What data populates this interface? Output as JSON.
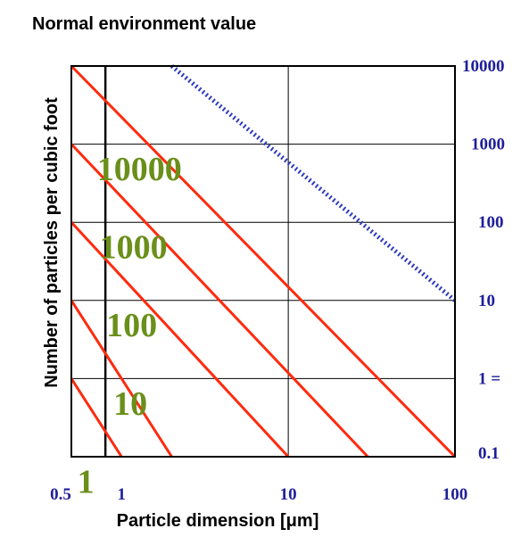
{
  "chart_data": {
    "type": "line",
    "title": "Normal environment value",
    "xlabel": "Particle dimension [μm]",
    "ylabel": "Number of particles per cubic foot",
    "x_scale": "log",
    "y_scale": "log",
    "xlim": [
      0.5,
      100
    ],
    "ylim": [
      0.1,
      10000
    ],
    "x_ticks": [
      "0.5",
      "1",
      "10",
      "100"
    ],
    "y_ticks": [
      "10000",
      "1000",
      "100",
      "10",
      "1 =",
      "0.1"
    ],
    "grid": true,
    "class_labels": [
      "10000",
      "1000",
      "100",
      "10",
      "1"
    ],
    "series": [
      {
        "color": "#ff2a0d",
        "style": "solid",
        "label_index": 4,
        "points": [
          [
            0.5,
            1
          ],
          [
            1.0,
            0.1
          ]
        ]
      },
      {
        "color": "#ff2a0d",
        "style": "solid",
        "label_index": 3,
        "points": [
          [
            0.5,
            10
          ],
          [
            2.0,
            0.1
          ]
        ]
      },
      {
        "color": "#ff2a0d",
        "style": "solid",
        "label_index": 2,
        "points": [
          [
            0.5,
            100
          ],
          [
            10,
            0.1
          ]
        ]
      },
      {
        "color": "#ff2a0d",
        "style": "solid",
        "label_index": 1,
        "points": [
          [
            0.5,
            1000
          ],
          [
            30,
            0.1
          ]
        ]
      },
      {
        "color": "#ff2a0d",
        "style": "solid",
        "label_index": 0,
        "points": [
          [
            0.5,
            10000
          ],
          [
            100,
            0.1
          ]
        ]
      },
      {
        "color": "#2f3dbb",
        "style": "dotted",
        "points": [
          [
            2.0,
            10000
          ],
          [
            100,
            10
          ]
        ]
      }
    ],
    "vertical_marker_x": 0.8
  }
}
